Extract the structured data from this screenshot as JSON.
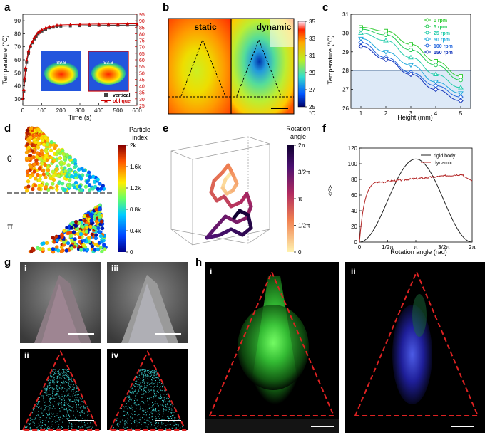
{
  "panel_labels": {
    "a": "a",
    "b": "b",
    "c": "c",
    "d": "d",
    "e": "e",
    "f": "f",
    "g": "g",
    "h": "h"
  },
  "panel_a": {
    "ylabel": "Temperature (°C)",
    "xlabel": "Time (s)",
    "legend": [
      "vertical",
      "oblique"
    ],
    "xticks": [
      "0",
      "100",
      "200",
      "300",
      "400",
      "500",
      "600"
    ],
    "yticks_left": [
      "30",
      "40",
      "50",
      "60",
      "70",
      "80",
      "90"
    ],
    "yticks_right": [
      "25",
      "30",
      "35",
      "40",
      "45",
      "50",
      "55",
      "60",
      "65",
      "70",
      "75",
      "80",
      "85",
      "90",
      "95"
    ],
    "inset_labels": [
      "89.8",
      "93.3"
    ],
    "colors": {
      "vertical": "#444444",
      "oblique": "#cc0000"
    }
  },
  "panel_b": {
    "left_label": "static",
    "right_label": "dynamic",
    "colorbar_ticks": [
      "35",
      "33",
      "31",
      "29",
      "27",
      "25"
    ],
    "unit": "°C"
  },
  "panel_d": {
    "colorbar_title": "Particle index",
    "colorbar_ticks": [
      "2k",
      "1.6k",
      "1.2k",
      "0.8k",
      "0.4k",
      "0"
    ],
    "top_label": "0",
    "bottom_label": "π"
  },
  "panel_e": {
    "colorbar_title": "Rotation angle",
    "colorbar_ticks": [
      "2π",
      "3/2π",
      "π",
      "1/2π",
      "0"
    ]
  },
  "panel_g": {
    "labels": [
      "i",
      "iii",
      "ii",
      "iv"
    ]
  },
  "panel_h": {
    "labels": [
      "i",
      "ii"
    ]
  },
  "chart_data": [
    {
      "type": "line",
      "id": "a",
      "xlabel": "Time (s)",
      "ylabel": "Temperature (°C)",
      "xlim": [
        0,
        600
      ],
      "ylim": [
        25,
        95
      ],
      "x": [
        0,
        5,
        10,
        15,
        20,
        30,
        40,
        50,
        60,
        70,
        80,
        90,
        100,
        120,
        140,
        160,
        180,
        200,
        250,
        300,
        350,
        400,
        450,
        500,
        550,
        600
      ],
      "series": [
        {
          "name": "vertical",
          "values": [
            30,
            36,
            44,
            52,
            58,
            65,
            70,
            73,
            76,
            78,
            80,
            81,
            82,
            83.5,
            84.5,
            85,
            85.5,
            85.8,
            86,
            86.2,
            86.3,
            86.4,
            86.5,
            86.5,
            86.6,
            86.6
          ]
        },
        {
          "name": "oblique",
          "values": [
            30,
            37,
            46,
            54,
            60,
            67,
            71,
            74,
            77,
            79,
            81,
            82,
            83,
            84.5,
            85.5,
            86,
            86.5,
            86.8,
            87,
            87.2,
            87.3,
            87.4,
            87.5,
            87.5,
            87.6,
            87.6
          ]
        }
      ]
    },
    {
      "type": "line",
      "id": "c",
      "xlabel": "Height (mm)",
      "ylabel": "Temperature (°C)",
      "xlim": [
        0.6,
        5.4
      ],
      "ylim": [
        26,
        31
      ],
      "threshold": 28,
      "categories": [
        1,
        2,
        3,
        4,
        5
      ],
      "series": [
        {
          "name": "0     rpm",
          "color": "#33cc33",
          "values": [
            30.3,
            30.1,
            29.4,
            28.5,
            27.7
          ]
        },
        {
          "name": "5     rpm",
          "color": "#22cc55",
          "values": [
            30.2,
            29.9,
            29.1,
            28.3,
            27.5
          ]
        },
        {
          "name": "25   rpm",
          "color": "#22ccaa",
          "values": [
            30.0,
            29.6,
            28.7,
            27.8,
            27.1
          ]
        },
        {
          "name": "50   rpm",
          "color": "#22aadd",
          "values": [
            29.7,
            29.0,
            28.3,
            27.4,
            26.8
          ]
        },
        {
          "name": "100 rpm",
          "color": "#2266dd",
          "values": [
            29.5,
            28.7,
            27.9,
            27.2,
            26.6
          ]
        },
        {
          "name": "150 rpm",
          "color": "#1133bb",
          "values": [
            29.3,
            28.6,
            27.8,
            27.0,
            26.4
          ]
        }
      ],
      "xticks": [
        "1",
        "2",
        "3",
        "4",
        "5"
      ],
      "yticks": [
        "26",
        "27",
        "28",
        "29",
        "30",
        "31"
      ]
    },
    {
      "type": "line",
      "id": "f",
      "xlabel": "Rotation angle (rad)",
      "ylabel": "<r²>",
      "xlim": [
        0,
        6.2832
      ],
      "ylim": [
        0,
        120
      ],
      "xticks": [
        "0",
        "1/2π",
        "π",
        "3/2π",
        "2π"
      ],
      "yticks": [
        "0",
        "20",
        "40",
        "60",
        "80",
        "100",
        "120"
      ],
      "series": [
        {
          "name": "rigid body",
          "color": "#222222",
          "kind": "rigid"
        },
        {
          "name": "dynamic",
          "color": "#b22222",
          "kind": "dynamic"
        }
      ]
    }
  ]
}
